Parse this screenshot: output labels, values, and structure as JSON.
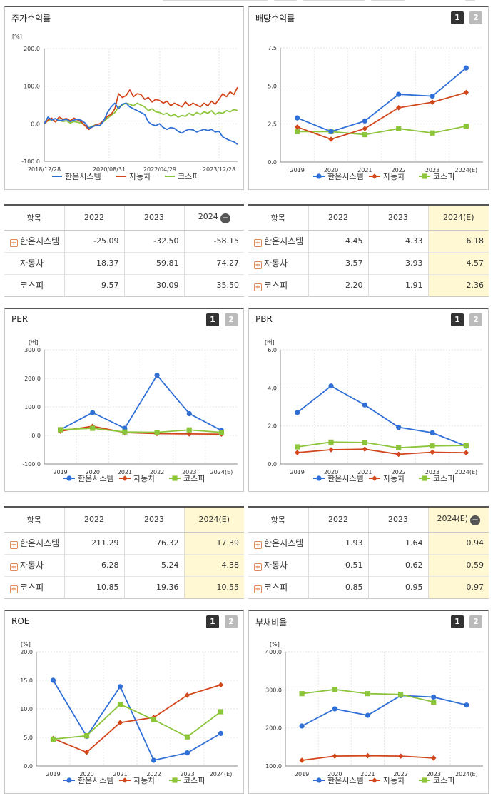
{
  "colors": {
    "hanon": "#2f6fd6",
    "auto": "#d2461c",
    "kospi": "#8cc43a"
  },
  "legend": [
    "한온시스템",
    "자동차",
    "코스피"
  ],
  "charts": {
    "stock": {
      "title": "주가수익률",
      "unit": "[%]"
    },
    "div": {
      "title": "배당수익률",
      "btn1": "1",
      "btn2": "2"
    },
    "per": {
      "title": "PER",
      "unit": "[배]",
      "btn1": "1",
      "btn2": "2"
    },
    "pbr": {
      "title": "PBR",
      "unit": "[배]",
      "btn1": "1",
      "btn2": "2"
    },
    "roe": {
      "title": "ROE",
      "unit": "[%]",
      "btn1": "1",
      "btn2": "2"
    },
    "debt": {
      "title": "부채비율",
      "unit": "[%]",
      "btn1": "1",
      "btn2": "2"
    }
  },
  "tables": {
    "stock": {
      "headers": [
        "항목",
        "2022",
        "2023",
        "2024"
      ],
      "rows": [
        [
          "한온시스템",
          "-25.09",
          "-32.50",
          "-58.15"
        ],
        [
          "자동차",
          "18.37",
          "59.81",
          "74.27"
        ],
        [
          "코스피",
          "9.57",
          "30.09",
          "35.50"
        ]
      ]
    },
    "div": {
      "headers": [
        "항목",
        "2022",
        "2023",
        "2024(E)"
      ],
      "rows": [
        [
          "한온시스템",
          "4.45",
          "4.33",
          "6.18"
        ],
        [
          "자동차",
          "3.57",
          "3.93",
          "4.57"
        ],
        [
          "코스피",
          "2.20",
          "1.91",
          "2.36"
        ]
      ]
    },
    "per": {
      "headers": [
        "항목",
        "2022",
        "2023",
        "2024(E)"
      ],
      "rows": [
        [
          "한온시스템",
          "211.29",
          "76.32",
          "17.39"
        ],
        [
          "자동차",
          "6.28",
          "5.24",
          "4.38"
        ],
        [
          "코스피",
          "10.85",
          "19.36",
          "10.55"
        ]
      ]
    },
    "pbr": {
      "headers": [
        "항목",
        "2022",
        "2023",
        "2024(E)"
      ],
      "rows": [
        [
          "한온시스템",
          "1.93",
          "1.64",
          "0.94"
        ],
        [
          "자동차",
          "0.51",
          "0.62",
          "0.59"
        ],
        [
          "코스피",
          "0.85",
          "0.95",
          "0.97"
        ]
      ]
    }
  },
  "chart_data": [
    {
      "id": "stock",
      "type": "line",
      "title": "주가수익률",
      "ylabel": "[%]",
      "ylim": [
        -100,
        200
      ],
      "yticks": [
        "200.0",
        "100.0",
        "0.0",
        "-100.0"
      ],
      "xticks": [
        "2018/12/28",
        "2020/08/31",
        "2022/04/29",
        "2023/12/28"
      ],
      "series": [
        {
          "name": "한온시스템",
          "values": [
            0,
            18,
            10,
            14,
            8,
            10,
            12,
            6,
            10,
            12,
            9,
            2,
            -12,
            -8,
            -4,
            -5,
            8,
            30,
            45,
            55,
            40,
            52,
            55,
            45,
            40,
            35,
            30,
            25,
            5,
            -2,
            -5,
            0,
            -10,
            -15,
            -10,
            -12,
            -20,
            -25,
            -18,
            -15,
            -16,
            -22,
            -18,
            -15,
            -18,
            -15,
            -22,
            -20,
            -35,
            -40,
            -45,
            -48,
            -55
          ]
        },
        {
          "name": "자동차",
          "values": [
            0,
            10,
            15,
            5,
            18,
            12,
            14,
            8,
            15,
            10,
            5,
            -5,
            -15,
            -8,
            -2,
            0,
            10,
            20,
            25,
            40,
            80,
            70,
            75,
            90,
            72,
            80,
            78,
            65,
            70,
            58,
            65,
            62,
            55,
            60,
            48,
            55,
            50,
            45,
            58,
            48,
            55,
            50,
            45,
            55,
            48,
            60,
            52,
            65,
            80,
            72,
            85,
            78,
            97
          ]
        },
        {
          "name": "코스피",
          "values": [
            0,
            8,
            12,
            6,
            10,
            6,
            8,
            2,
            6,
            4,
            2,
            -4,
            -10,
            -6,
            -2,
            0,
            6,
            15,
            22,
            30,
            45,
            50,
            55,
            52,
            48,
            55,
            50,
            45,
            35,
            40,
            32,
            30,
            25,
            28,
            20,
            25,
            18,
            22,
            20,
            28,
            22,
            30,
            25,
            32,
            28,
            35,
            25,
            30,
            28,
            35,
            32,
            38,
            35
          ]
        }
      ]
    },
    {
      "id": "div",
      "type": "line",
      "title": "배당수익률",
      "ylim": [
        0,
        7.5
      ],
      "yticks": [
        "7.5",
        "5.0",
        "2.5",
        "0.0"
      ],
      "categories": [
        "2019",
        "2020",
        "2021",
        "2022",
        "2023",
        "2024(E)"
      ],
      "series": [
        {
          "name": "한온시스템",
          "values": [
            2.9,
            2.0,
            2.7,
            4.45,
            4.33,
            6.18
          ]
        },
        {
          "name": "자동차",
          "values": [
            2.3,
            1.5,
            2.2,
            3.57,
            3.93,
            4.57
          ]
        },
        {
          "name": "코스피",
          "values": [
            2.0,
            2.0,
            1.8,
            2.2,
            1.91,
            2.36
          ]
        }
      ]
    },
    {
      "id": "per",
      "type": "line",
      "title": "PER",
      "ylabel": "[배]",
      "ylim": [
        -100,
        300
      ],
      "yticks": [
        "300.0",
        "200.0",
        "100.0",
        "0.0",
        "-100.0"
      ],
      "categories": [
        "2019",
        "2020",
        "2021",
        "2022",
        "2023",
        "2024(E)"
      ],
      "series": [
        {
          "name": "한온시스템",
          "values": [
            20,
            80,
            25,
            211.29,
            76.32,
            17.39
          ]
        },
        {
          "name": "자동차",
          "values": [
            15,
            32,
            10,
            6.28,
            5.24,
            4.38
          ]
        },
        {
          "name": "코스피",
          "values": [
            20,
            25,
            12,
            10.85,
            19.36,
            10.55
          ]
        }
      ]
    },
    {
      "id": "pbr",
      "type": "line",
      "title": "PBR",
      "ylabel": "[배]",
      "ylim": [
        0,
        6
      ],
      "yticks": [
        "6.0",
        "4.0",
        "2.0",
        "0.0"
      ],
      "categories": [
        "2019",
        "2020",
        "2021",
        "2022",
        "2023",
        "2024(E)"
      ],
      "series": [
        {
          "name": "한온시스템",
          "values": [
            2.7,
            4.1,
            3.1,
            1.93,
            1.64,
            0.94
          ]
        },
        {
          "name": "자동차",
          "values": [
            0.6,
            0.75,
            0.78,
            0.51,
            0.62,
            0.59
          ]
        },
        {
          "name": "코스피",
          "values": [
            0.9,
            1.15,
            1.13,
            0.85,
            0.95,
            0.97
          ]
        }
      ]
    },
    {
      "id": "roe",
      "type": "line",
      "title": "ROE",
      "ylabel": "[%]",
      "ylim": [
        0,
        20
      ],
      "yticks": [
        "20.0",
        "15.0",
        "10.0",
        "5.0",
        "0.0"
      ],
      "categories": [
        "2019",
        "2020",
        "2021",
        "2022",
        "2023",
        "2024(E)"
      ],
      "series": [
        {
          "name": "한온시스템",
          "values": [
            15.0,
            5.2,
            13.9,
            1.0,
            2.3,
            5.7
          ]
        },
        {
          "name": "자동차",
          "values": [
            4.8,
            2.4,
            7.6,
            8.5,
            12.4,
            14.2
          ]
        },
        {
          "name": "코스피",
          "values": [
            4.7,
            5.3,
            10.8,
            8.1,
            5.1,
            9.5
          ]
        }
      ]
    },
    {
      "id": "debt",
      "type": "line",
      "title": "부채비율",
      "ylabel": "[%]",
      "ylim": [
        100,
        400
      ],
      "yticks": [
        "400.0",
        "300.0",
        "200.0",
        "100.0"
      ],
      "categories": [
        "2019",
        "2020",
        "2021",
        "2022",
        "2023",
        "2024(E)"
      ],
      "series": [
        {
          "name": "한온시스템",
          "values": [
            205,
            250,
            233,
            285,
            281,
            260
          ]
        },
        {
          "name": "자동차",
          "values": [
            115,
            126,
            127,
            126,
            121,
            null
          ]
        },
        {
          "name": "코스피",
          "values": [
            290,
            301,
            290,
            288,
            268,
            null
          ]
        }
      ]
    }
  ]
}
